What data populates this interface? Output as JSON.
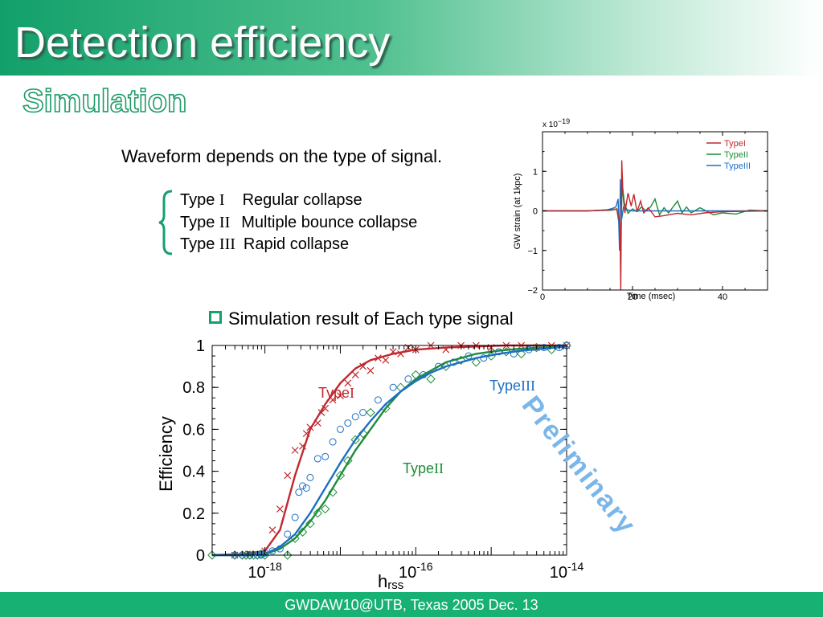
{
  "slide": {
    "title": "Detection efficiency",
    "subtitle": "Simulation",
    "waveform_text": "Waveform depends on the type of signal.",
    "types": [
      {
        "prefix": "Type ",
        "numeral": "I",
        "desc": "Regular collapse"
      },
      {
        "prefix": "Type ",
        "numeral": "II",
        "desc": "Multiple bounce collapse"
      },
      {
        "prefix": "Type ",
        "numeral": "III",
        "desc": "Rapid collapse"
      }
    ],
    "bullet": "Simulation result of Each type signal",
    "footer": "GWDAW10@UTB, Texas  2005 Dec. 13",
    "watermark": "Preliminary"
  },
  "colors": {
    "typeI": "#c0282e",
    "typeII": "#1d8c3a",
    "typeIII": "#1d6fc4",
    "accent": "#15a06c",
    "watermark": "#7ab6ea"
  },
  "chart_data": [
    {
      "type": "line",
      "title": "",
      "multiplier_label": "x 10",
      "multiplier_exp": "−19",
      "xlabel": "Time (msec)",
      "ylabel": "GW strain (at 1kpc)",
      "xlim": [
        0,
        50
      ],
      "ylim": [
        -2,
        2
      ],
      "xticks": [
        0,
        20,
        40
      ],
      "xtick_labels": [
        "0",
        "20",
        "40"
      ],
      "yticks": [
        1,
        0,
        -1,
        -2
      ],
      "ytick_labels": [
        "1",
        "0",
        "−1",
        "−2"
      ],
      "legend_position": "top-right",
      "series": [
        {
          "name": "TypeI",
          "color": "#c0282e",
          "x": [
            0,
            10,
            15,
            16.5,
            17.2,
            17.4,
            17.6,
            17.9,
            18.3,
            19,
            19.7,
            20.3,
            21,
            21.8,
            22.5,
            23.5,
            25,
            27,
            30,
            33,
            36,
            40,
            45,
            50
          ],
          "y": [
            0,
            0,
            0.03,
            0.05,
            -0.3,
            -2.0,
            1.28,
            0.4,
            -0.05,
            0.45,
            0.12,
            0.42,
            -0.02,
            0.25,
            -0.05,
            0.08,
            -0.15,
            -0.12,
            -0.06,
            -0.1,
            -0.05,
            -0.02,
            -0.01,
            0
          ]
        },
        {
          "name": "TypeII",
          "color": "#1d8c3a",
          "x": [
            0,
            10,
            15,
            16.5,
            17.1,
            17.4,
            17.7,
            18.2,
            19,
            20,
            21,
            22,
            23,
            24,
            25,
            26,
            27,
            28,
            30,
            31,
            32,
            33,
            35,
            38,
            40,
            43,
            46,
            50
          ],
          "y": [
            0,
            0,
            0.02,
            0.05,
            -0.4,
            -0.9,
            0.7,
            0.2,
            -0.06,
            0.05,
            -0.02,
            0.1,
            0,
            0.1,
            0.3,
            -0.1,
            0.08,
            -0.05,
            0.25,
            -0.05,
            0.1,
            -0.05,
            0.08,
            -0.1,
            -0.05,
            -0.08,
            0.02,
            0
          ]
        },
        {
          "name": "TypeIII",
          "color": "#1d6fc4",
          "x": [
            0,
            10,
            14,
            15.5,
            16.3,
            16.8,
            17.1,
            17.3,
            17.6,
            18,
            19,
            20,
            22,
            25,
            30,
            40,
            50
          ],
          "y": [
            0,
            0,
            0.02,
            0.06,
            0.1,
            0.3,
            -1.0,
            0.8,
            -0.2,
            0.1,
            0.02,
            0,
            0,
            0,
            0,
            0,
            0
          ]
        }
      ]
    },
    {
      "type": "line",
      "title": "",
      "xlabel": "h",
      "xlabel_sub": "rss",
      "ylabel": "Efficiency",
      "x_scale": "log",
      "xlim": [
        2e-19,
        1e-14
      ],
      "ylim": [
        0,
        1
      ],
      "xtick_labels": [
        {
          "base": "10",
          "exp": "-18",
          "value": 1e-18
        },
        {
          "base": "10",
          "exp": "-16",
          "value": 1e-16
        },
        {
          "base": "10",
          "exp": "-14",
          "value": 1e-14
        }
      ],
      "yticks": [
        0,
        0.2,
        0.4,
        0.6,
        0.8,
        1
      ],
      "ytick_labels": [
        "0",
        "0.2",
        "0.4",
        "0.6",
        "0.8",
        "1"
      ],
      "curve_labels": [
        {
          "series": "TypeI",
          "text": "Type",
          "numeral": "I"
        },
        {
          "series": "TypeII",
          "text": "Type",
          "numeral": "II"
        },
        {
          "series": "TypeIII",
          "text": "Type",
          "numeral": "III"
        }
      ],
      "series": [
        {
          "name": "TypeI",
          "color": "#c0282e",
          "marker": "x",
          "fit": {
            "log10x": [
              -18.7,
              -18.3,
              -18.0,
              -17.8,
              -17.6,
              -17.4,
              -17.2,
              -17.0,
              -16.8,
              -16.6,
              -16.3,
              -16.0,
              -15.6,
              -15.2,
              -14.8,
              -14.6,
              -14.0
            ],
            "y": [
              0,
              0.005,
              0.02,
              0.12,
              0.38,
              0.6,
              0.72,
              0.82,
              0.89,
              0.93,
              0.96,
              0.98,
              0.99,
              0.995,
              1,
              1,
              1
            ]
          },
          "points": {
            "log10x": [
              -18.4,
              -18.2,
              -18.0,
              -17.9,
              -17.8,
              -17.7,
              -17.6,
              -17.5,
              -17.45,
              -17.4,
              -17.3,
              -17.25,
              -17.2,
              -17.1,
              -17.0,
              -16.9,
              -16.8,
              -16.7,
              -16.6,
              -16.5,
              -16.4,
              -16.3,
              -16.2,
              -16.1,
              -16.0,
              -15.8,
              -15.6,
              -15.4,
              -15.2,
              -15.0,
              -14.8,
              -14.6,
              -14.4,
              -14.2,
              -14.0
            ],
            "y": [
              0,
              0.005,
              0.02,
              0.12,
              0.22,
              0.38,
              0.5,
              0.52,
              0.58,
              0.61,
              0.63,
              0.68,
              0.7,
              0.74,
              0.76,
              0.82,
              0.86,
              0.9,
              0.88,
              0.94,
              0.93,
              0.97,
              0.96,
              0.99,
              0.98,
              1,
              0.98,
              1,
              1,
              0.99,
              1,
              1,
              0.99,
              1,
              1
            ]
          }
        },
        {
          "name": "TypeII",
          "color": "#1d8c3a",
          "marker": "diamond",
          "fit": {
            "log10x": [
              -18.7,
              -18.3,
              -18.0,
              -17.8,
              -17.6,
              -17.4,
              -17.2,
              -17.0,
              -16.8,
              -16.6,
              -16.4,
              -16.2,
              -16.0,
              -15.8,
              -15.6,
              -15.4,
              -15.2,
              -14.9,
              -14.6,
              -14.3,
              -14.0
            ],
            "y": [
              0,
              0,
              0.005,
              0.03,
              0.08,
              0.16,
              0.26,
              0.38,
              0.5,
              0.6,
              0.7,
              0.78,
              0.84,
              0.88,
              0.92,
              0.94,
              0.96,
              0.975,
              0.985,
              0.99,
              0.995
            ]
          },
          "points": {
            "log10x": [
              -18.7,
              -18.4,
              -18.3,
              -18.25,
              -18.2,
              -18.15,
              -18.1,
              -18.05,
              -18.0,
              -17.7,
              -17.6,
              -17.5,
              -17.4,
              -17.3,
              -17.2,
              -17.1,
              -17.0,
              -16.9,
              -16.8,
              -16.7,
              -16.6,
              -16.4,
              -16.2,
              -16.0,
              -15.8,
              -15.6,
              -15.4,
              -15.2,
              -15.0,
              -14.8,
              -14.6,
              -14.4,
              -14.2,
              -14.0
            ],
            "y": [
              0,
              0,
              0,
              0,
              0,
              0,
              0,
              0.005,
              0,
              0,
              0.08,
              0.11,
              0.15,
              0.2,
              0.22,
              0.3,
              0.38,
              0.45,
              0.55,
              0.58,
              0.68,
              0.7,
              0.8,
              0.86,
              0.84,
              0.9,
              0.93,
              0.92,
              0.95,
              0.97,
              0.96,
              0.99,
              0.98,
              1
            ]
          }
        },
        {
          "name": "TypeIII",
          "color": "#1d6fc4",
          "marker": "circle",
          "fit": {
            "log10x": [
              -18.7,
              -18.3,
              -18.0,
              -17.8,
              -17.6,
              -17.4,
              -17.2,
              -17.0,
              -16.8,
              -16.6,
              -16.4,
              -16.2,
              -16.0,
              -15.8,
              -15.6,
              -15.4,
              -15.2,
              -14.9,
              -14.6,
              -14.3,
              -14.0
            ],
            "y": [
              0,
              0,
              0.005,
              0.04,
              0.1,
              0.2,
              0.32,
              0.44,
              0.55,
              0.64,
              0.72,
              0.78,
              0.83,
              0.87,
              0.9,
              0.92,
              0.94,
              0.96,
              0.975,
              0.985,
              0.995
            ]
          },
          "points": {
            "log10x": [
              -18.4,
              -18.3,
              -18.2,
              -18.1,
              -18.05,
              -18.0,
              -17.9,
              -17.8,
              -17.7,
              -17.6,
              -17.55,
              -17.5,
              -17.45,
              -17.4,
              -17.3,
              -17.2,
              -17.1,
              -17.0,
              -16.9,
              -16.8,
              -16.7,
              -16.5,
              -16.3,
              -16.1,
              -15.9,
              -15.7,
              -15.5,
              -15.3,
              -15.1,
              -14.9,
              -14.7,
              -14.5,
              -14.3,
              -14.1,
              -14.0
            ],
            "y": [
              0,
              0,
              0,
              0,
              0,
              0.01,
              0.02,
              0.03,
              0.1,
              0.18,
              0.3,
              0.33,
              0.32,
              0.37,
              0.46,
              0.47,
              0.54,
              0.6,
              0.63,
              0.66,
              0.68,
              0.74,
              0.8,
              0.84,
              0.86,
              0.9,
              0.92,
              0.95,
              0.94,
              0.97,
              0.96,
              0.98,
              0.99,
              0.99,
              1
            ]
          }
        }
      ]
    }
  ]
}
